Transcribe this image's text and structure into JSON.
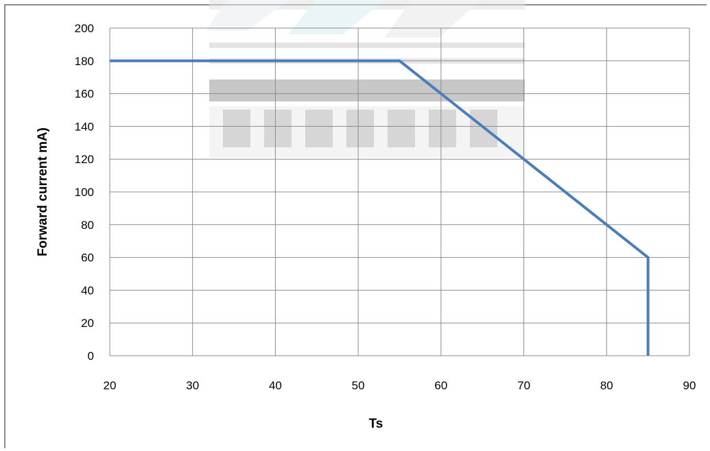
{
  "chart_data": {
    "type": "line",
    "title": "",
    "xlabel": "Ts",
    "ylabel": "Forward current   mA)",
    "xlim": [
      20,
      90
    ],
    "ylim": [
      0,
      200
    ],
    "xticks": [
      20,
      30,
      40,
      50,
      60,
      70,
      80,
      90
    ],
    "yticks": [
      0,
      20,
      40,
      60,
      80,
      100,
      120,
      140,
      160,
      180,
      200
    ],
    "grid": true,
    "legend": "none",
    "series": [
      {
        "x": [
          20,
          55,
          70,
          80,
          85,
          85
        ],
        "y": [
          180,
          180,
          120,
          80,
          60,
          0
        ],
        "color": "#4a7ebb"
      }
    ],
    "watermark": "logo"
  }
}
